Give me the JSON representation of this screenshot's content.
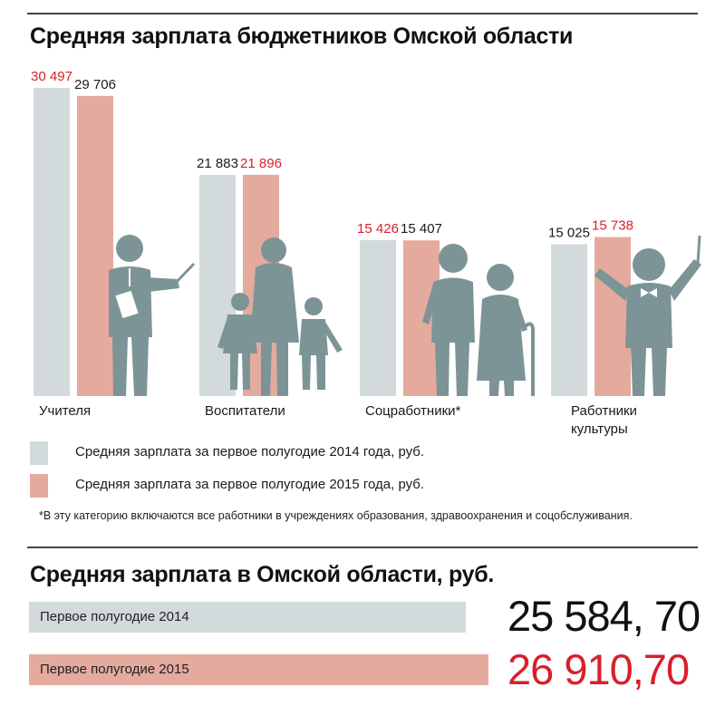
{
  "colors": {
    "year2014": "#d3dadc",
    "year2015": "#e5aa9e",
    "label_red": "#d8202b",
    "label_dark": "#1a1a1a",
    "figures": "#7d9497",
    "big2014": "#111111",
    "big2015": "#d8202b"
  },
  "titles": {
    "main": "Средняя зарплата бюджетников Омской области",
    "second": "Средняя зарплата в Омской области, руб."
  },
  "chart_data": [
    {
      "type": "bar",
      "title": "Средняя зарплата бюджетников Омской области",
      "categories": [
        "Учителя",
        "Воспитатели",
        "Соцработники*",
        "Работники культуры"
      ],
      "category_lines": [
        [
          "Учителя"
        ],
        [
          "Воспитатели"
        ],
        [
          "Соцработники*"
        ],
        [
          "Работники",
          "культуры"
        ]
      ],
      "series": [
        {
          "name": "Средняя зарплата за первое полугодие 2014 года, руб.",
          "values": [
            30497,
            21883,
            15426,
            15025
          ],
          "labels": [
            "30 497",
            "21 883",
            "15 426",
            "15 025"
          ],
          "label_colors": [
            "red",
            "dark",
            "red",
            "dark"
          ]
        },
        {
          "name": "Средняя зарплата за первое полугодие 2015 года, руб.",
          "values": [
            29706,
            21896,
            15407,
            15738
          ],
          "labels": [
            "29 706",
            "21 896",
            "15 407",
            "15 738"
          ],
          "label_colors": [
            "dark",
            "red",
            "dark",
            "red"
          ]
        }
      ],
      "icons": [
        "teacher-figure-icon",
        "family-figure-icon",
        "elderly-couple-icon",
        "conductor-figure-icon"
      ],
      "legend_position": "bottom",
      "grid": false
    },
    {
      "type": "bar",
      "orientation": "horizontal",
      "title": "Средняя зарплата в Омской области, руб.",
      "categories": [
        "Первое полугодие 2014",
        "Первое полугодие 2015"
      ],
      "values": [
        25584.7,
        26910.7
      ],
      "value_labels": [
        "25 584, 70",
        "26 910,70"
      ]
    }
  ],
  "footnote": "*В эту категорию включаются все работники в учреждениях образования, здравоохранения и соцобслуживания."
}
